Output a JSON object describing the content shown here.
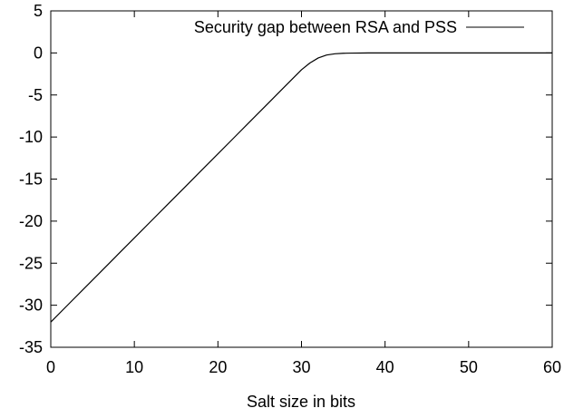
{
  "chart_data": {
    "type": "line",
    "title": "",
    "xlabel": "Salt size in bits",
    "ylabel": "",
    "xlim": [
      0,
      60
    ],
    "ylim": [
      -35,
      5
    ],
    "xticks": [
      "0",
      "10",
      "20",
      "30",
      "40",
      "50",
      "60"
    ],
    "yticks": [
      "5",
      "0",
      "-5",
      "-10",
      "-15",
      "-20",
      "-25",
      "-30",
      "-35"
    ],
    "grid": false,
    "legend_position": "top-right",
    "series": [
      {
        "name": "Security gap between RSA and PSS",
        "color": "#000000",
        "x": [
          0,
          2,
          4,
          6,
          8,
          10,
          12,
          14,
          16,
          18,
          20,
          22,
          24,
          26,
          28,
          29,
          30,
          31,
          32,
          33,
          34,
          35,
          36,
          37,
          38,
          40,
          45,
          50,
          55,
          60
        ],
        "y": [
          -32,
          -30,
          -28,
          -26,
          -24,
          -22,
          -20,
          -18,
          -16,
          -14,
          -12,
          -10,
          -8,
          -6,
          -4,
          -3,
          -2,
          -1.2,
          -0.6,
          -0.25,
          -0.1,
          -0.04,
          -0.02,
          -0.01,
          0,
          0,
          0,
          0,
          0,
          0
        ]
      }
    ]
  }
}
